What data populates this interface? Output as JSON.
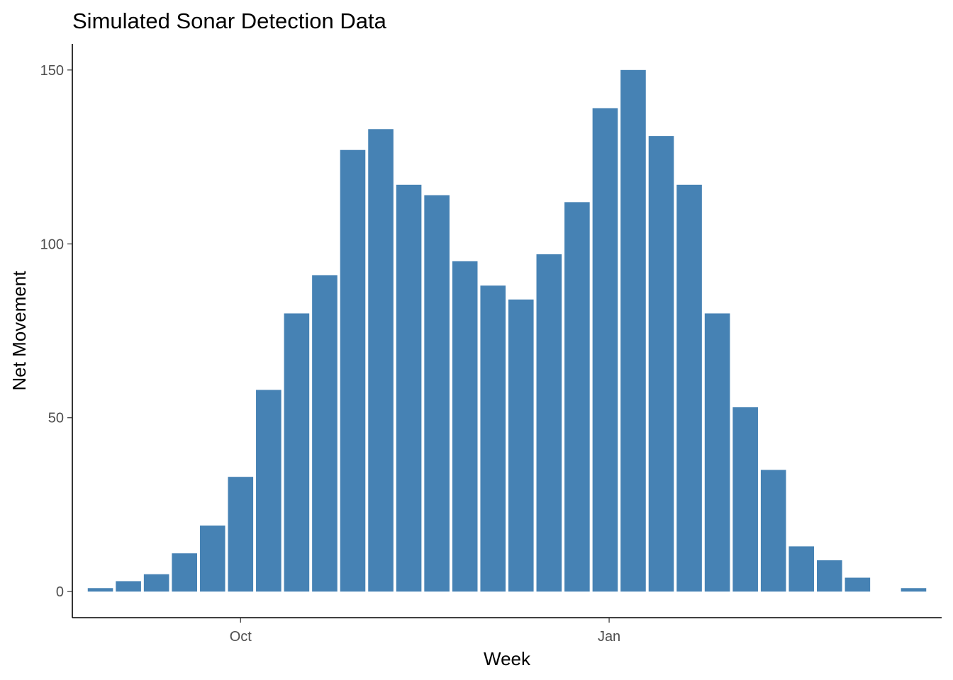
{
  "chart_data": {
    "type": "bar",
    "title": "Simulated Sonar Detection Data",
    "xlabel": "Week",
    "ylabel": "Net Movement",
    "x": [
      "2023-08-27",
      "2023-09-03",
      "2023-09-10",
      "2023-09-17",
      "2023-09-24",
      "2023-10-01",
      "2023-10-08",
      "2023-10-15",
      "2023-10-22",
      "2023-10-29",
      "2023-11-05",
      "2023-11-12",
      "2023-11-19",
      "2023-11-26",
      "2023-12-03",
      "2023-12-10",
      "2023-12-17",
      "2023-12-24",
      "2023-12-31",
      "2024-01-07",
      "2024-01-14",
      "2024-01-21",
      "2024-01-28",
      "2024-02-04",
      "2024-02-11",
      "2024-02-18",
      "2024-02-25",
      "2024-03-03",
      "2024-03-10",
      "2024-03-17"
    ],
    "values": [
      1,
      3,
      5,
      11,
      19,
      33,
      58,
      80,
      91,
      127,
      133,
      117,
      114,
      95,
      88,
      84,
      97,
      112,
      139,
      150,
      131,
      117,
      80,
      53,
      35,
      13,
      9,
      4,
      0,
      1
    ],
    "x_ticks": [
      {
        "label": "Oct",
        "value": "2023-10-01"
      },
      {
        "label": "Jan",
        "value": "2024-01-01"
      }
    ],
    "y_ticks": [
      0,
      50,
      100,
      150
    ],
    "ylim": [
      -7.5,
      157.5
    ],
    "xlim": [
      "2023-08-20",
      "2024-03-24"
    ],
    "grid": false,
    "legend": "none",
    "bar_color": "#4682B4"
  }
}
